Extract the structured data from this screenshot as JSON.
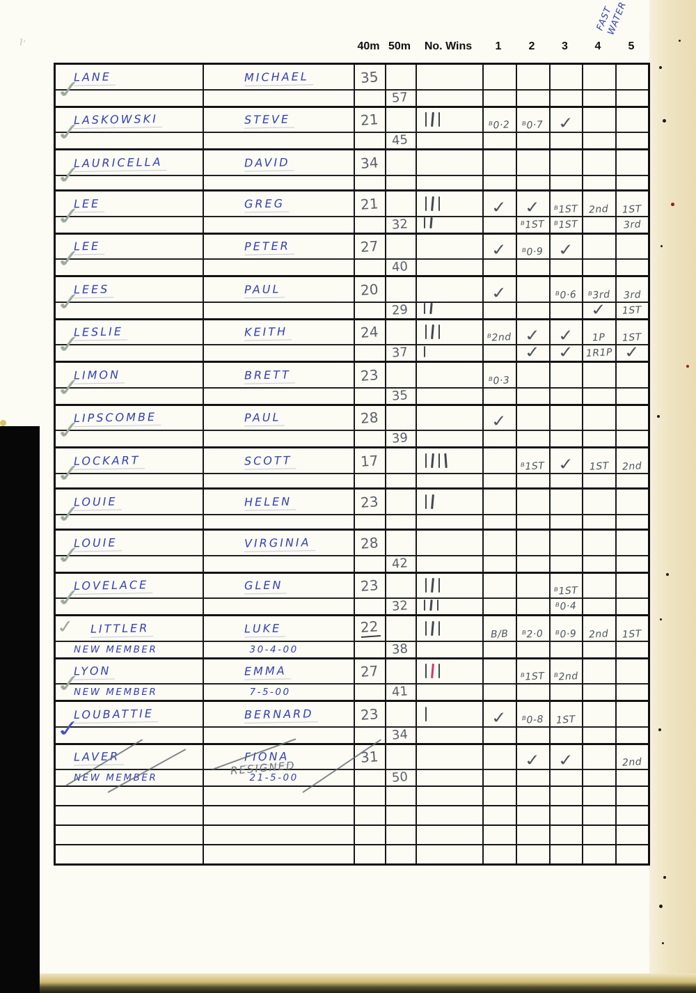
{
  "annotations": {
    "fast_water": "FAST WATER"
  },
  "header": {
    "columns": [
      "40m",
      "50m",
      "No. Wins",
      "1",
      "2",
      "3",
      "4",
      "5"
    ]
  },
  "colors": {
    "ink_blue": "#3240b4",
    "pencil": "#555c63",
    "pencil_light": "#9cab9f",
    "red_tally": "#d6356b",
    "paper": "#fcfbf4",
    "paper_edge": "#e9dcb4",
    "bar_black": "#070707"
  },
  "table": {
    "blocks": [
      {
        "surname": "LANE",
        "firstname": "MICHAEL",
        "m40": "35",
        "wins": "",
        "cells": [
          "",
          "",
          "",
          "",
          ""
        ],
        "sub": {
          "m50": "57",
          "wins": "",
          "cells": [
            "",
            "",
            "",
            "",
            ""
          ]
        },
        "margin_check": "pencil"
      },
      {
        "surname": "LASKOWSKI",
        "firstname": "STEVE",
        "m40": "21",
        "wins": "III",
        "cells": [
          "ᴮ0·2",
          "ᴮ0·7",
          "✓",
          "",
          ""
        ],
        "sub": {
          "m50": "45",
          "wins": "",
          "cells": [
            "",
            "",
            "",
            "",
            ""
          ]
        },
        "margin_check": "pencil"
      },
      {
        "surname": "LAURICELLA",
        "firstname": "DAVID",
        "m40": "34",
        "wins": "",
        "cells": [
          "",
          "",
          "",
          "",
          ""
        ],
        "sub": {
          "m50": "",
          "wins": "",
          "cells": [
            "",
            "",
            "",
            "",
            ""
          ]
        },
        "margin_check": "pencil"
      },
      {
        "surname": "LEE",
        "firstname": "GREG",
        "m40": "21",
        "wins": "III",
        "cells": [
          "✓",
          "✓",
          "ᴮ1ST",
          "2nd",
          "1ST"
        ],
        "sub": {
          "m50": "32",
          "wins": "II",
          "cells": [
            "",
            "ᴮ1ST",
            "ᴮ1ST",
            "",
            "3rd"
          ]
        },
        "margin_check": "pencil"
      },
      {
        "surname": "LEE",
        "firstname": "PETER",
        "m40": "27",
        "wins": "",
        "cells": [
          "✓",
          "ᴮ0·9",
          "✓",
          "",
          ""
        ],
        "sub": {
          "m50": "40",
          "wins": "",
          "cells": [
            "",
            "",
            "",
            "",
            ""
          ]
        },
        "margin_check": "pencil"
      },
      {
        "surname": "LEES",
        "firstname": "PAUL",
        "m40": "20",
        "wins": "",
        "cells": [
          "✓",
          "",
          "ᴮ0·6",
          "ᴮ3rd",
          "3rd"
        ],
        "sub": {
          "m50": "29",
          "wins": "II",
          "cells": [
            "",
            "",
            "",
            "✓",
            "1ST"
          ]
        },
        "margin_check": "pencil"
      },
      {
        "surname": "LESLIE",
        "firstname": "KEITH",
        "m40": "24",
        "wins": "III",
        "cells": [
          "ᴮ2nd",
          "✓",
          "✓",
          "1P",
          "1ST"
        ],
        "sub": {
          "m50": "37",
          "wins": "I",
          "cells": [
            "",
            "✓",
            "✓",
            "1R1P",
            "✓"
          ]
        },
        "margin_check": "pencil"
      },
      {
        "surname": "LIMON",
        "firstname": "BRETT",
        "m40": "23",
        "wins": "",
        "cells": [
          "ᴮ0·3",
          "",
          "",
          "",
          ""
        ],
        "sub": {
          "m50": "35",
          "wins": "",
          "cells": [
            "",
            "",
            "",
            "",
            ""
          ]
        },
        "margin_check": "pencil"
      },
      {
        "surname": "LIPSCOMBE",
        "firstname": "PAUL",
        "m40": "28",
        "wins": "",
        "cells": [
          "✓",
          "",
          "",
          "",
          ""
        ],
        "sub": {
          "m50": "39",
          "wins": "",
          "cells": [
            "",
            "",
            "",
            "",
            ""
          ]
        },
        "margin_check": "pencil"
      },
      {
        "surname": "LOCKART",
        "firstname": "SCOTT",
        "m40": "17",
        "wins": "IIII",
        "cells": [
          "",
          "ᴮ1ST",
          "✓",
          "1ST",
          "2nd"
        ],
        "sub": {
          "m50": "",
          "wins": "",
          "cells": [
            "",
            "",
            "",
            "",
            ""
          ]
        },
        "margin_check": "pencil"
      },
      {
        "surname": "LOUIE",
        "firstname": "HELEN",
        "m40": "23",
        "wins": "II",
        "cells": [
          "",
          "",
          "",
          "",
          ""
        ],
        "sub": {
          "m50": "",
          "wins": "",
          "cells": [
            "",
            "",
            "",
            "",
            ""
          ]
        },
        "margin_check": "pencil"
      },
      {
        "surname": "LOUIE",
        "firstname": "VIRGINIA",
        "m40": "28",
        "wins": "",
        "cells": [
          "",
          "",
          "",
          "",
          ""
        ],
        "sub": {
          "m50": "42",
          "wins": "",
          "cells": [
            "",
            "",
            "",
            "",
            ""
          ]
        },
        "margin_check": "pencil"
      },
      {
        "surname": "LOVELACE",
        "firstname": "GLEN",
        "m40": "23",
        "wins": "III",
        "cells": [
          "",
          "",
          "ᴮ1ST",
          "",
          ""
        ],
        "sub": {
          "m50": "32",
          "wins": "III",
          "cells": [
            "",
            "",
            "ᴮ0·4",
            "",
            ""
          ]
        },
        "margin_check": "pencil"
      },
      {
        "surname": "LITTLER",
        "firstname": "LUKE",
        "m40": "22",
        "m40_underline": true,
        "wins": "III",
        "cells": [
          "B/B",
          "ᴮ2·0",
          "ᴮ0·9",
          "2nd",
          "1ST"
        ],
        "sub": {
          "m50": "38",
          "wins": "",
          "cells": [
            "",
            "",
            "",
            "",
            ""
          ],
          "note_surname": "NEW MEMBER",
          "note_firstname": "30-4-00"
        },
        "pre_check": true
      },
      {
        "surname": "LYON",
        "firstname": "EMMA",
        "m40": "27",
        "wins": "III",
        "wins_colors": [
          "ink",
          "red",
          "ink"
        ],
        "cells": [
          "",
          "ᴮ1ST",
          "ᴮ2nd",
          "",
          ""
        ],
        "sub": {
          "m50": "41",
          "wins": "",
          "cells": [
            "",
            "",
            "",
            "",
            ""
          ],
          "note_surname": "NEW MEMBER",
          "note_firstname": "7-5-00"
        },
        "margin_check": "pencil"
      },
      {
        "surname": "LOUBATTIE",
        "firstname": "BERNARD",
        "m40": "23",
        "wins": "I",
        "cells": [
          "✓",
          "ᴮ0-8",
          "1ST",
          "",
          ""
        ],
        "sub": {
          "m50": "34",
          "wins": "",
          "cells": [
            "",
            "",
            "",
            "",
            ""
          ]
        },
        "margin_check": "blue"
      },
      {
        "surname": "LAVER",
        "firstname": "FIONA",
        "m40": "31",
        "wins": "",
        "cells": [
          "",
          "✓",
          "✓",
          "",
          "2nd"
        ],
        "sub": {
          "m50": "50",
          "wins": "",
          "cells": [
            "",
            "",
            "",
            "",
            ""
          ],
          "note_surname": "NEW MEMBER",
          "note_firstname": "21-5-00",
          "resigned": "RESIGNED"
        },
        "struck": true
      },
      {
        "empty": true
      },
      {
        "empty": true
      }
    ]
  }
}
